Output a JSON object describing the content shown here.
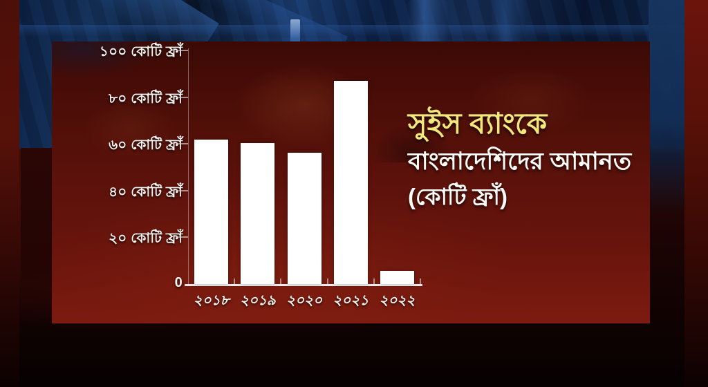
{
  "title": {
    "line1": "সুইস ব্যাংকে",
    "line2": "বাংলাদেশিদের আমানত",
    "line3": "(কোটি ফ্রাঁ)"
  },
  "colors": {
    "title_yellow": "#f1e87c",
    "title_white": "#fdfbf8",
    "bar_white": "#ffffff",
    "panel_red": "#5d120b",
    "photo_blue": "#16355f",
    "axis_gray": "#ececec"
  },
  "chart_data": {
    "type": "bar",
    "title": "সুইস ব্যাংকে বাংলাদেশিদের আমানত (কোটি ফ্রাঁ)",
    "unit": "কোটি ফ্রাঁ",
    "categories": [
      "২০১৮",
      "২০১৯",
      "২০২০",
      "২০২১",
      "২০২২"
    ],
    "values": [
      61.7,
      60.3,
      56.3,
      87.1,
      5.5
    ],
    "ylim": [
      0,
      100
    ],
    "ytick_interval": 20,
    "yticks": [
      {
        "value": 100,
        "label": "১০০ কোটি ফ্রাঁ"
      },
      {
        "value": 80,
        "label": "৮০ কোটি ফ্রাঁ"
      },
      {
        "value": 60,
        "label": "৬০ কোটি ফ্রাঁ"
      },
      {
        "value": 40,
        "label": "৪০ কোটি ফ্রাঁ"
      },
      {
        "value": 20,
        "label": "২০ কোটি ফ্রাঁ"
      },
      {
        "value": 0,
        "label": "0"
      }
    ],
    "grid": false,
    "legend": "none",
    "bar_color": "#ffffff",
    "xlabel": "",
    "ylabel": ""
  }
}
